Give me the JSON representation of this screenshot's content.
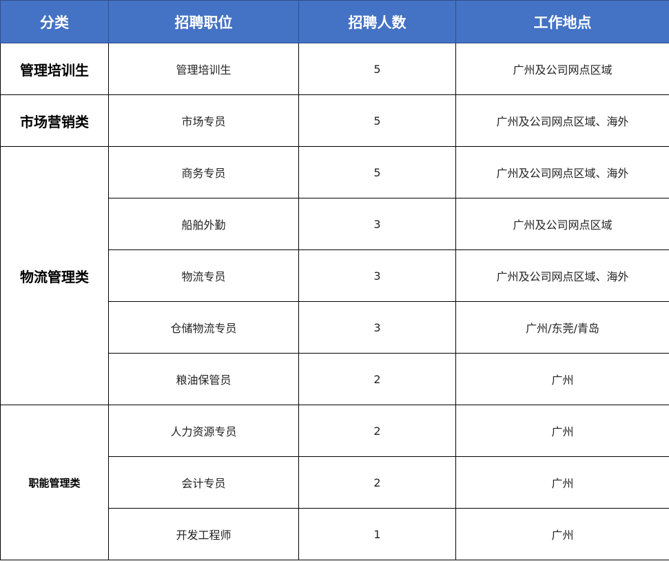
{
  "header": {
    "category": "分类",
    "position": "招聘职位",
    "count": "招聘人数",
    "location": "工作地点",
    "color": "#4472C4"
  },
  "groups": [
    {
      "category": "管理培训生",
      "rows": [
        {
          "position": "管理培训生",
          "count": "5",
          "location": "广州及公司网点区域"
        }
      ]
    },
    {
      "category": "市场营销类",
      "rows": [
        {
          "position": "市场专员",
          "count": "5",
          "location": "广州及公司网点区域、海外"
        }
      ]
    },
    {
      "category": "物流管理类",
      "rows": [
        {
          "position": "商务专员",
          "count": "5",
          "location": "广州及公司网点区域、海外"
        },
        {
          "position": "船舶外勤",
          "count": "3",
          "location": "广州及公司网点区域"
        },
        {
          "position": "物流专员",
          "count": "3",
          "location": "广州及公司网点区域、海外"
        },
        {
          "position": "仓储物流专员",
          "count": "3",
          "location": "广州/东莞/青岛"
        },
        {
          "position": "粮油保管员",
          "count": "2",
          "location": "广州"
        }
      ]
    },
    {
      "category": "职能管理类",
      "rows": [
        {
          "position": "人力资源专员",
          "count": "2",
          "location": "广州"
        },
        {
          "position": "会计专员",
          "count": "2",
          "location": "广州"
        },
        {
          "position": "开发工程师",
          "count": "1",
          "location": "广州"
        }
      ]
    }
  ]
}
